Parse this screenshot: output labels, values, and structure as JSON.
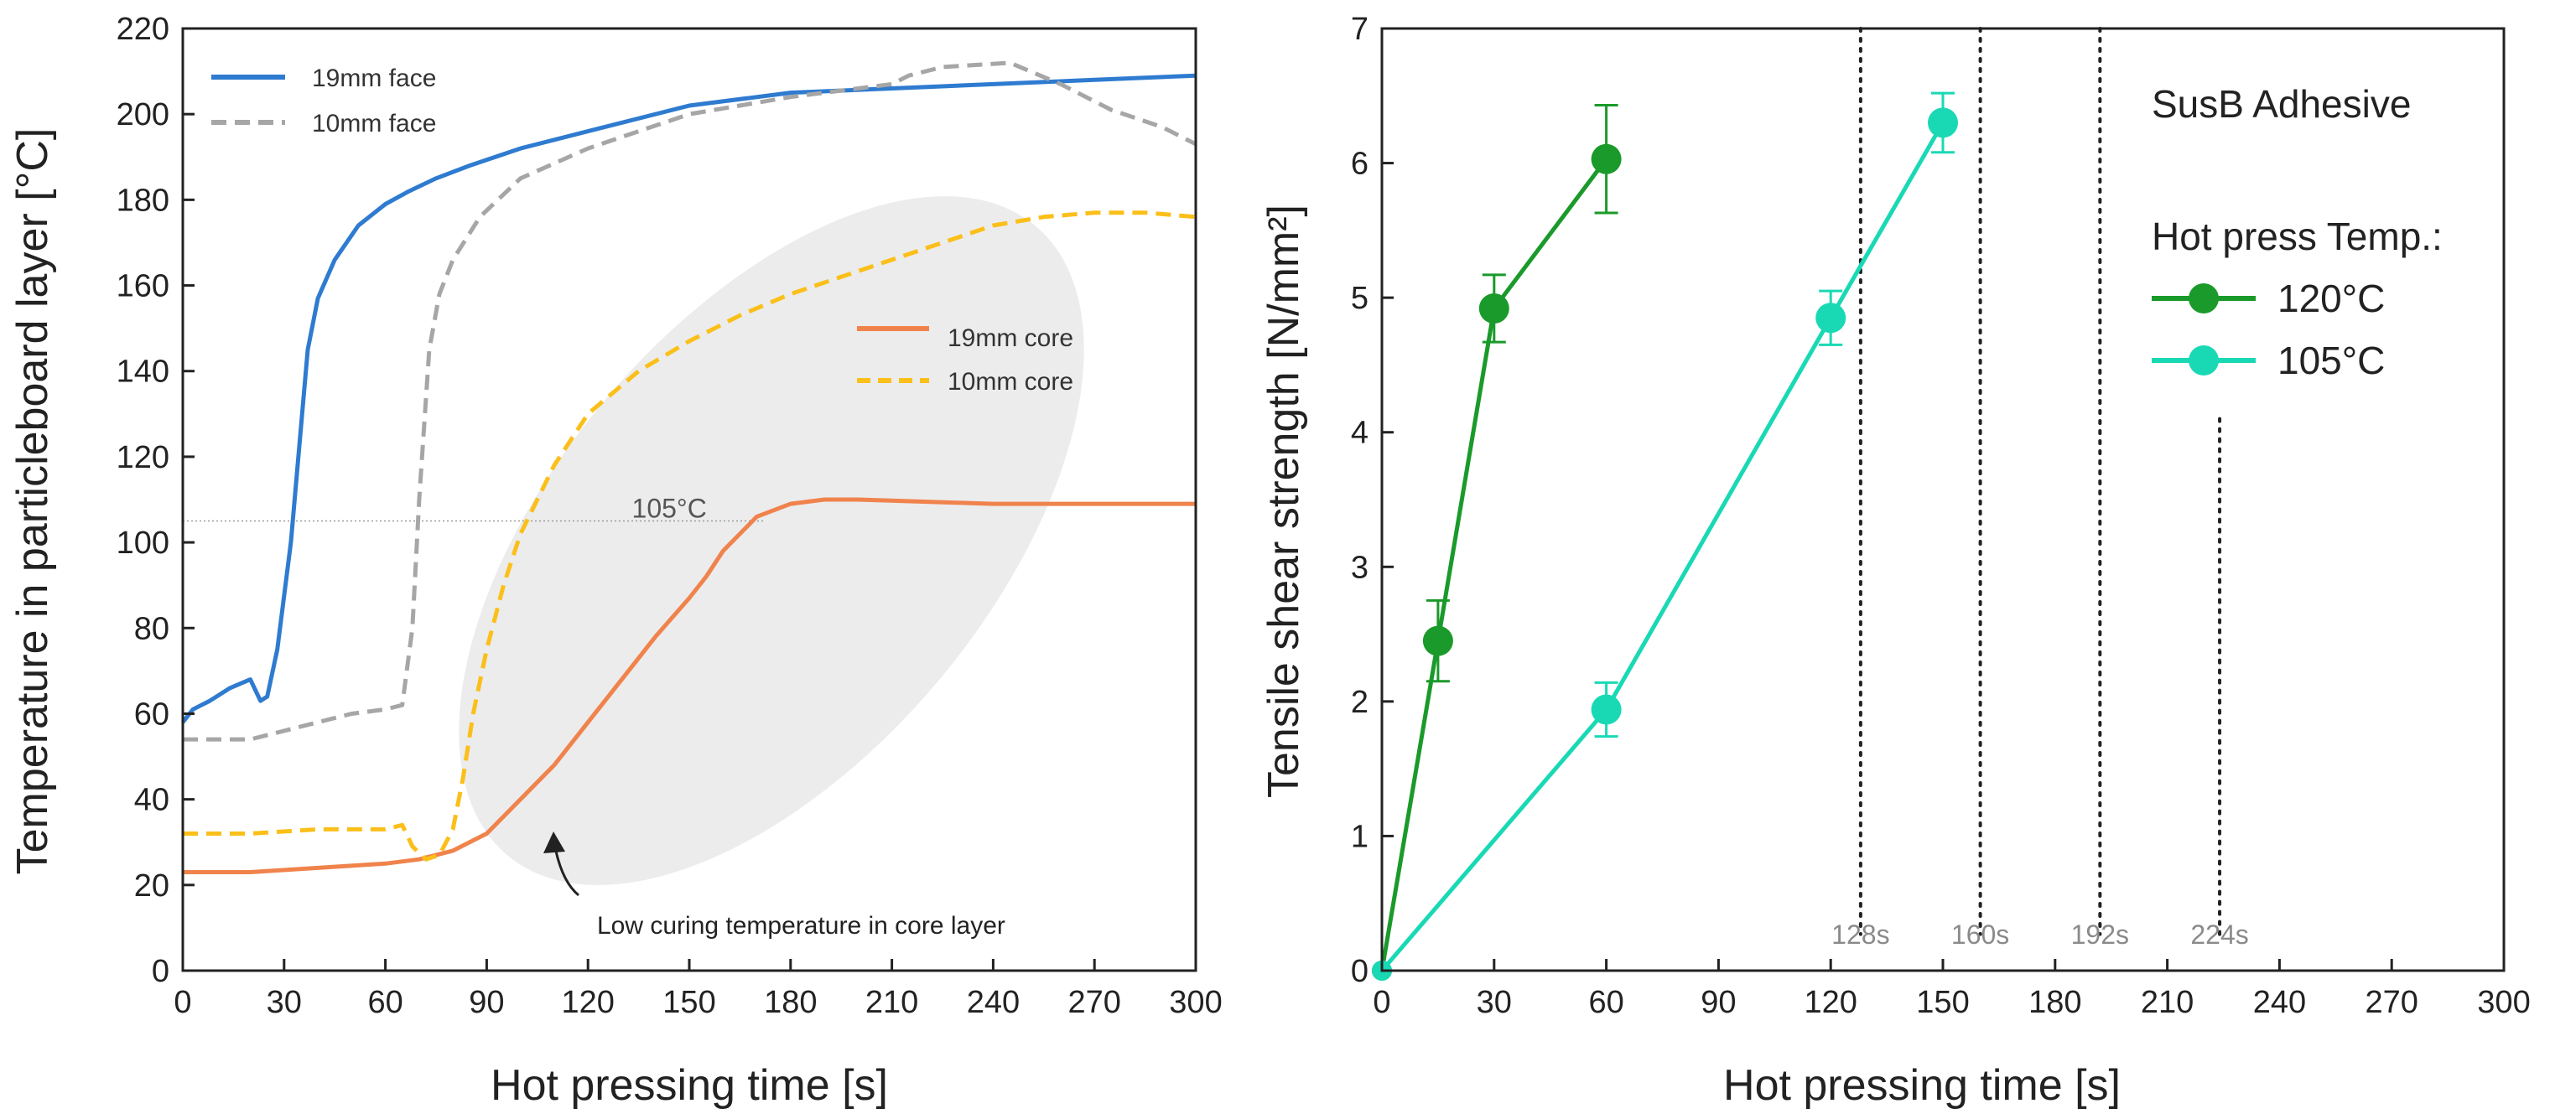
{
  "chart_data": [
    {
      "type": "line",
      "xlabel": "Hot pressing time [s]",
      "ylabel": "Temperature in particleboard layer [°C]",
      "xlim": [
        0,
        300
      ],
      "ylim": [
        0,
        220
      ],
      "xticks": [
        0,
        30,
        60,
        90,
        120,
        150,
        180,
        210,
        240,
        270,
        300
      ],
      "yticks": [
        0,
        20,
        40,
        60,
        80,
        100,
        120,
        140,
        160,
        180,
        200,
        220
      ],
      "grid": false,
      "legend_position": "top-left",
      "series": [
        {
          "name": "19mm face",
          "color": "#2e7bd0",
          "dash": "solid",
          "x": [
            0,
            3,
            8,
            14,
            20,
            23,
            25,
            28,
            32,
            37,
            40,
            45,
            52,
            60,
            67,
            75,
            85,
            100,
            120,
            150,
            180,
            210,
            240,
            270,
            300
          ],
          "y": [
            58,
            61,
            63,
            66,
            68,
            63,
            64,
            75,
            100,
            145,
            157,
            166,
            174,
            179,
            182,
            185,
            188,
            192,
            196,
            202,
            205,
            206,
            207,
            208,
            209
          ]
        },
        {
          "name": "10mm face",
          "color": "#a6a6a6",
          "dash": "dashed",
          "x": [
            0,
            10,
            20,
            30,
            40,
            50,
            60,
            65,
            68,
            70,
            73,
            76,
            80,
            88,
            100,
            120,
            150,
            180,
            210,
            215,
            225,
            245,
            260,
            275,
            290,
            300
          ],
          "y": [
            54,
            54,
            54,
            56,
            58,
            60,
            61,
            62,
            80,
            110,
            145,
            158,
            166,
            176,
            185,
            192,
            200,
            204,
            207,
            209,
            211,
            212,
            207,
            201,
            197,
            193
          ]
        },
        {
          "name": "19mm core",
          "color": "#f0834c",
          "dash": "solid",
          "x": [
            0,
            20,
            40,
            60,
            70,
            80,
            90,
            100,
            110,
            120,
            130,
            140,
            150,
            155,
            160,
            170,
            180,
            190,
            200,
            240,
            300
          ],
          "y": [
            23,
            23,
            24,
            25,
            26,
            28,
            32,
            40,
            48,
            58,
            68,
            78,
            87,
            92,
            98,
            106,
            109,
            110,
            110,
            109,
            109
          ]
        },
        {
          "name": "10mm core",
          "color": "#fbbf1a",
          "dash": "dashed",
          "x": [
            0,
            20,
            40,
            60,
            65,
            68,
            72,
            76,
            80,
            83,
            86,
            90,
            95,
            100,
            110,
            120,
            135,
            150,
            165,
            180,
            195,
            210,
            225,
            240,
            255,
            270,
            285,
            300
          ],
          "y": [
            32,
            32,
            33,
            33,
            34,
            29,
            26,
            27,
            33,
            45,
            60,
            75,
            90,
            102,
            118,
            130,
            140,
            147,
            153,
            158,
            162,
            166,
            170,
            174,
            176,
            177,
            177,
            176
          ]
        }
      ],
      "annotations": {
        "reference_label": "105°C",
        "reference_value": 105,
        "highlight_label": "Low curing temperature in core layer"
      }
    },
    {
      "type": "line",
      "xlabel": "Hot pressing time [s]",
      "ylabel": "Tensile shear strength [N/mm²]",
      "xlim": [
        0,
        300
      ],
      "ylim": [
        0,
        7
      ],
      "xticks": [
        0,
        30,
        60,
        90,
        120,
        150,
        180,
        210,
        240,
        270,
        300
      ],
      "yticks": [
        0,
        1,
        2,
        3,
        4,
        5,
        6,
        7
      ],
      "grid": false,
      "legend_position": "top-right",
      "title": "SusB Adhesive",
      "legend_title": "Hot press Temp.:",
      "series": [
        {
          "name": "120°C",
          "color": "#1a9a2a",
          "x": [
            0,
            15,
            30,
            60
          ],
          "y": [
            0,
            2.45,
            4.92,
            6.03
          ],
          "err": [
            0,
            0.3,
            0.25,
            0.4
          ]
        },
        {
          "name": "105°C",
          "color": "#19d9b5",
          "x": [
            0,
            60,
            120,
            150
          ],
          "y": [
            0,
            1.94,
            4.85,
            6.3
          ],
          "err": [
            0,
            0.2,
            0.2,
            0.22
          ]
        }
      ],
      "vlines": [
        {
          "x": 128,
          "label": "128s"
        },
        {
          "x": 160,
          "label": "160s"
        },
        {
          "x": 192,
          "label": "192s"
        },
        {
          "x": 224,
          "label": "224s"
        }
      ]
    }
  ]
}
